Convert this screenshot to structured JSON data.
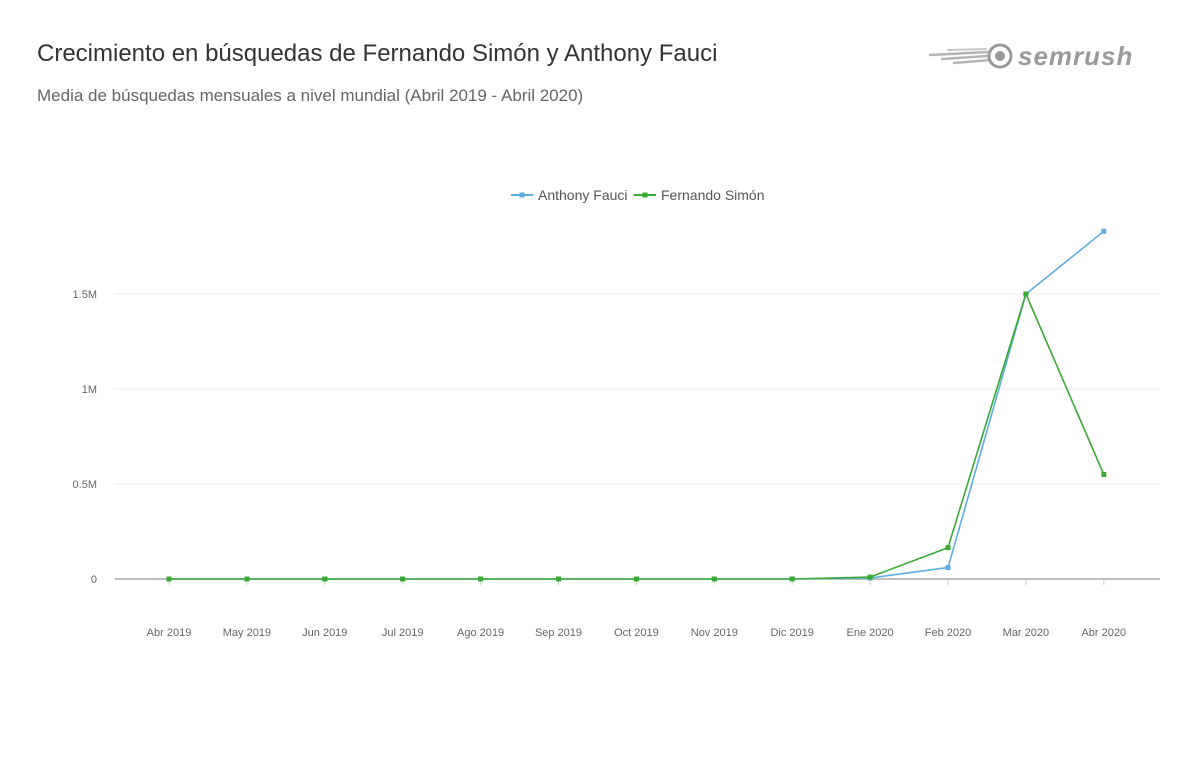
{
  "header": {
    "title": "Crecimiento en búsquedas de Fernando Simón y Anthony Fauci",
    "subtitle": "Media de búsquedas mensuales a nivel mundial (Abril 2019 - Abril 2020)"
  },
  "logo": {
    "text": "semrush",
    "icon": "semrush-comet-icon",
    "color": "#9a9a9a"
  },
  "chart_data": {
    "type": "line",
    "title": "",
    "xlabel": "",
    "ylabel": "",
    "categories": [
      "Abr 2019",
      "May 2019",
      "Jun 2019",
      "Jul 2019",
      "Ago 2019",
      "Sep 2019",
      "Oct 2019",
      "Nov 2019",
      "Dic 2019",
      "Ene 2020",
      "Feb 2020",
      "Mar 2020",
      "Abr 2020"
    ],
    "series": [
      {
        "name": "Anthony Fauci",
        "color": "#5dade2",
        "values": [
          0,
          0,
          0,
          0,
          0,
          0,
          0,
          0,
          0,
          5000,
          60000,
          1500000,
          1830000
        ]
      },
      {
        "name": "Fernando Simón",
        "color": "#3aaa35",
        "values": [
          0,
          0,
          0,
          0,
          0,
          0,
          0,
          0,
          0,
          10000,
          165000,
          1500000,
          550000
        ]
      }
    ],
    "ylim": [
      0,
      1830000
    ],
    "yticks": [
      {
        "value": 0,
        "label": "0"
      },
      {
        "value": 500000,
        "label": "0.5M"
      },
      {
        "value": 1000000,
        "label": "1M"
      },
      {
        "value": 1500000,
        "label": "1.5M"
      }
    ],
    "grid": true,
    "legend_position": "top-center"
  }
}
